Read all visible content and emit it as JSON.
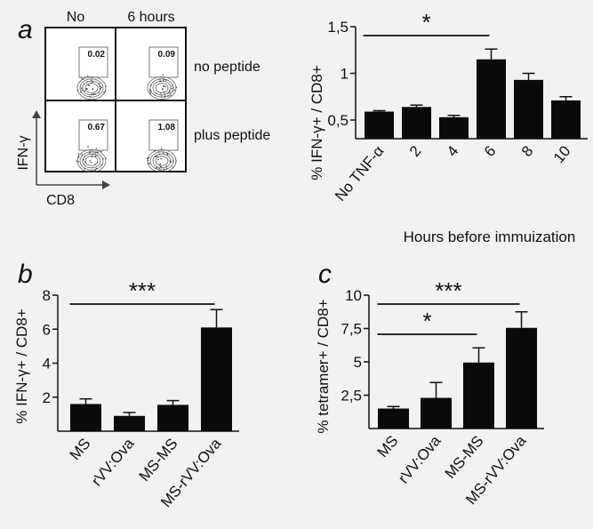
{
  "panels": {
    "a": "a",
    "b": "b",
    "c": "c"
  },
  "flow": {
    "col_headers": [
      "No",
      "6 hours"
    ],
    "row_labels": [
      "no peptide",
      "plus peptide"
    ],
    "gate_values": [
      [
        "0.02",
        "0.09"
      ],
      [
        "0.67",
        "1.08"
      ]
    ],
    "y_axis": "IFN-γ",
    "x_axis": "CD8"
  },
  "chart_data": [
    {
      "type": "bar",
      "id": "a",
      "categories": [
        "No TNF-α",
        "2",
        "4",
        "6",
        "8",
        "10"
      ],
      "values": [
        0.59,
        0.64,
        0.53,
        1.15,
        0.93,
        0.71
      ],
      "errors": [
        0.01,
        0.02,
        0.02,
        0.11,
        0.07,
        0.04
      ],
      "ylim": [
        0.3,
        1.5
      ],
      "yticks": [
        0.5,
        1,
        1.5
      ],
      "ytick_labels": [
        "0,5",
        "1",
        "1,5"
      ],
      "ylabel": "% IFN-γ+ / CD8+",
      "xlabel": "Hours before immuization",
      "significance": [
        {
          "from": 0,
          "to": 3,
          "label": "*"
        }
      ]
    },
    {
      "type": "bar",
      "id": "b",
      "categories": [
        "MS",
        "rVV:Ova",
        "MS-MS",
        "MS-rVV:Ova"
      ],
      "values": [
        1.6,
        0.9,
        1.55,
        6.1
      ],
      "errors": [
        0.3,
        0.2,
        0.25,
        1.05
      ],
      "ylim": [
        0,
        8
      ],
      "yticks": [
        2,
        4,
        6,
        8
      ],
      "ytick_labels": [
        "2",
        "4",
        "6",
        "8"
      ],
      "ylabel": "% IFN-γ+ / CD8+",
      "xlabel": "",
      "significance": [
        {
          "from": 0,
          "to": 3,
          "label": "***"
        }
      ]
    },
    {
      "type": "bar",
      "id": "c",
      "categories": [
        "MS",
        "rVV:Ova",
        "MS-MS",
        "MS-rVV:Ova"
      ],
      "values": [
        1.5,
        2.3,
        4.95,
        7.55
      ],
      "errors": [
        0.15,
        1.15,
        1.1,
        1.2
      ],
      "ylim": [
        0,
        10
      ],
      "yticks": [
        2.5,
        5,
        7.5,
        10
      ],
      "ytick_labels": [
        "2,5",
        "5",
        "7,5",
        "10"
      ],
      "ylabel": "% tetramer+ / CD8+",
      "xlabel": "",
      "significance": [
        {
          "from": 0,
          "to": 3,
          "label": "***"
        },
        {
          "from": 0,
          "to": 2,
          "label": "*"
        }
      ]
    }
  ]
}
